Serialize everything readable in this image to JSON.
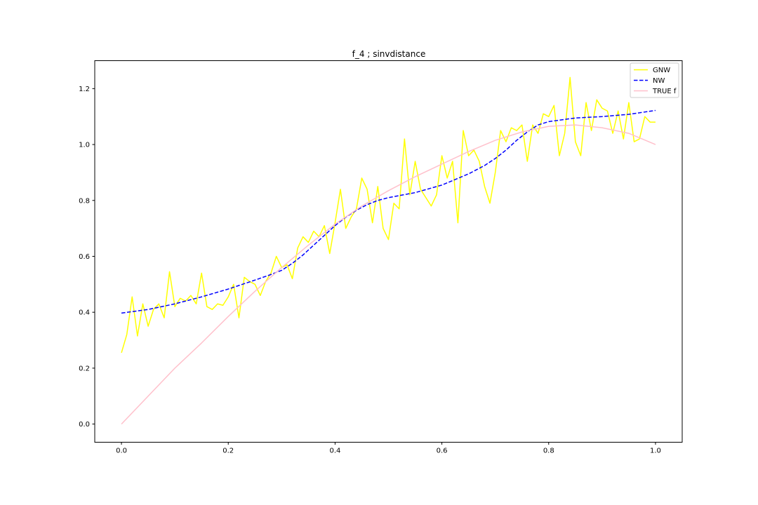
{
  "chart_data": {
    "type": "line",
    "title": "f_4 ; sinvdistance",
    "xlabel": "",
    "ylabel": "",
    "xlim": [
      -0.05,
      1.05
    ],
    "ylim": [
      -0.065,
      1.3
    ],
    "xticks": [
      0.0,
      0.2,
      0.4,
      0.6,
      0.8,
      1.0
    ],
    "xtick_labels": [
      "0.0",
      "0.2",
      "0.4",
      "0.6",
      "0.8",
      "1.0"
    ],
    "yticks": [
      0.0,
      0.2,
      0.4,
      0.6,
      0.8,
      1.0,
      1.2
    ],
    "ytick_labels": [
      "0.0",
      "0.2",
      "0.4",
      "0.6",
      "0.8",
      "1.0",
      "1.2"
    ],
    "grid": false,
    "legend_position": "top-right",
    "series": [
      {
        "name": "GNW",
        "color": "#ffff00",
        "dash": "solid",
        "x": [
          0.0,
          0.01,
          0.02,
          0.03,
          0.04,
          0.05,
          0.06,
          0.07,
          0.08,
          0.09,
          0.1,
          0.11,
          0.12,
          0.13,
          0.14,
          0.15,
          0.16,
          0.17,
          0.18,
          0.19,
          0.2,
          0.21,
          0.22,
          0.23,
          0.24,
          0.25,
          0.26,
          0.27,
          0.28,
          0.29,
          0.3,
          0.31,
          0.32,
          0.33,
          0.34,
          0.35,
          0.36,
          0.37,
          0.38,
          0.39,
          0.4,
          0.41,
          0.42,
          0.43,
          0.44,
          0.45,
          0.46,
          0.47,
          0.48,
          0.49,
          0.5,
          0.51,
          0.52,
          0.53,
          0.54,
          0.55,
          0.56,
          0.57,
          0.58,
          0.59,
          0.6,
          0.61,
          0.62,
          0.63,
          0.64,
          0.65,
          0.66,
          0.67,
          0.68,
          0.69,
          0.7,
          0.71,
          0.72,
          0.73,
          0.74,
          0.75,
          0.76,
          0.77,
          0.78,
          0.79,
          0.8,
          0.81,
          0.82,
          0.83,
          0.84,
          0.85,
          0.86,
          0.87,
          0.88,
          0.89,
          0.9,
          0.91,
          0.92,
          0.93,
          0.94,
          0.95,
          0.96,
          0.97,
          0.98,
          0.99,
          1.0
        ],
        "y": [
          0.255,
          0.32,
          0.455,
          0.315,
          0.43,
          0.35,
          0.41,
          0.43,
          0.38,
          0.545,
          0.42,
          0.45,
          0.44,
          0.46,
          0.43,
          0.54,
          0.42,
          0.41,
          0.43,
          0.425,
          0.455,
          0.5,
          0.38,
          0.525,
          0.51,
          0.5,
          0.46,
          0.51,
          0.54,
          0.6,
          0.56,
          0.57,
          0.52,
          0.63,
          0.67,
          0.65,
          0.69,
          0.67,
          0.71,
          0.61,
          0.72,
          0.84,
          0.7,
          0.74,
          0.77,
          0.88,
          0.84,
          0.72,
          0.85,
          0.7,
          0.66,
          0.79,
          0.77,
          1.02,
          0.82,
          0.94,
          0.84,
          0.81,
          0.78,
          0.82,
          0.96,
          0.88,
          0.94,
          0.72,
          1.05,
          0.96,
          0.98,
          0.94,
          0.85,
          0.79,
          0.9,
          1.05,
          1.01,
          1.06,
          1.05,
          1.07,
          0.94,
          1.07,
          1.04,
          1.11,
          1.1,
          1.14,
          0.96,
          1.04,
          1.24,
          1.01,
          0.96,
          1.15,
          1.05,
          1.16,
          1.13,
          1.12,
          1.04,
          1.12,
          1.02,
          1.15,
          1.01,
          1.02,
          1.1,
          1.08,
          1.08
        ]
      },
      {
        "name": "NW",
        "color": "#0000ff",
        "dash": "dashed",
        "x": [
          0.0,
          0.05,
          0.1,
          0.15,
          0.2,
          0.25,
          0.28,
          0.3,
          0.32,
          0.34,
          0.36,
          0.38,
          0.4,
          0.42,
          0.44,
          0.46,
          0.48,
          0.5,
          0.55,
          0.6,
          0.65,
          0.68,
          0.7,
          0.72,
          0.74,
          0.76,
          0.78,
          0.8,
          0.85,
          0.9,
          0.95,
          1.0
        ],
        "y": [
          0.397,
          0.41,
          0.43,
          0.455,
          0.483,
          0.515,
          0.535,
          0.55,
          0.575,
          0.605,
          0.64,
          0.675,
          0.71,
          0.74,
          0.765,
          0.785,
          0.8,
          0.81,
          0.828,
          0.855,
          0.895,
          0.925,
          0.95,
          0.98,
          1.015,
          1.045,
          1.07,
          1.082,
          1.095,
          1.1,
          1.108,
          1.122
        ]
      },
      {
        "name": "TRUE f",
        "color": "#ffc0cb",
        "dash": "solid",
        "x": [
          0.0,
          0.05,
          0.1,
          0.15,
          0.2,
          0.25,
          0.3,
          0.35,
          0.4,
          0.45,
          0.5,
          0.55,
          0.6,
          0.65,
          0.7,
          0.75,
          0.8,
          0.85,
          0.9,
          0.95,
          1.0
        ],
        "y": [
          0.0,
          0.1,
          0.2,
          0.29,
          0.385,
          0.475,
          0.56,
          0.64,
          0.715,
          0.78,
          0.835,
          0.885,
          0.93,
          0.975,
          1.015,
          1.045,
          1.065,
          1.07,
          1.06,
          1.04,
          1.0
        ]
      }
    ]
  }
}
